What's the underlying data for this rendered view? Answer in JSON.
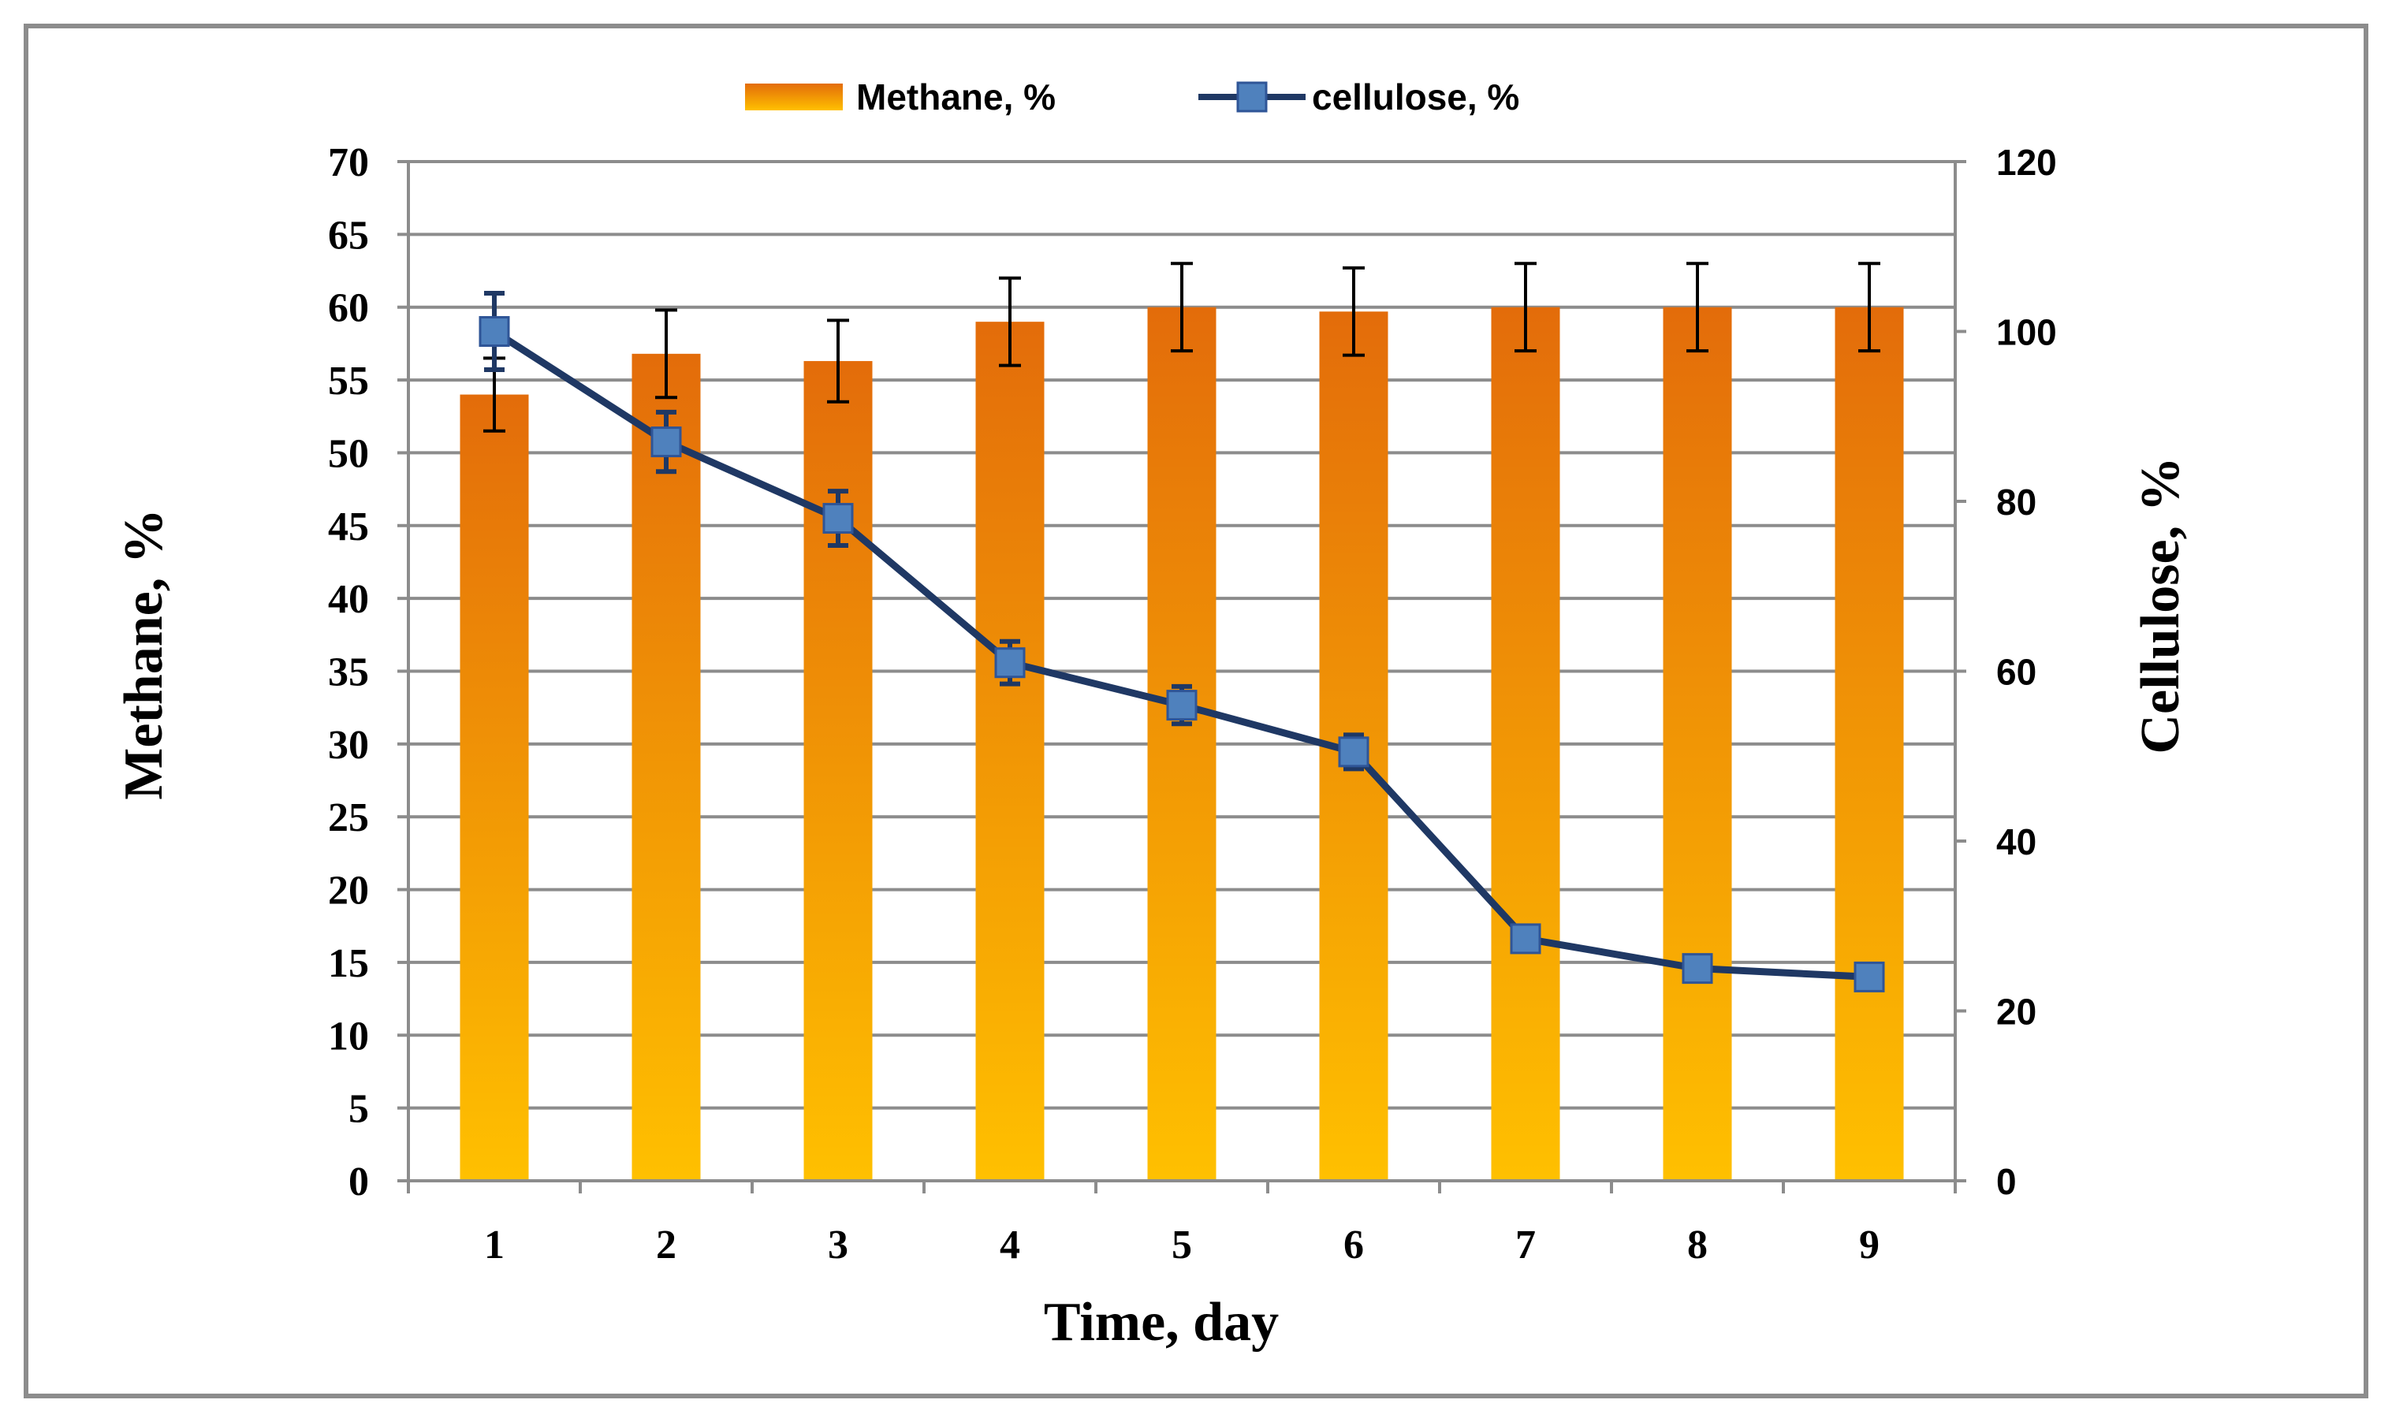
{
  "chart_data": {
    "type": "bar",
    "categories": [
      "1",
      "2",
      "3",
      "4",
      "5",
      "6",
      "7",
      "8",
      "9"
    ],
    "series": [
      {
        "name": "Methane, %",
        "type": "bar",
        "axis": "left",
        "values": [
          54,
          56.8,
          56.3,
          59,
          60,
          59.7,
          60,
          60,
          60
        ],
        "error": [
          2.5,
          3,
          2.8,
          3,
          3,
          3,
          3,
          3,
          3
        ],
        "color_top": "#e36c0a",
        "color_bottom": "#ffc000"
      },
      {
        "name": "cellulose, %",
        "type": "line",
        "axis": "right",
        "values": [
          100,
          87,
          78,
          61,
          56,
          50.5,
          28.5,
          25,
          24
        ],
        "error": [
          4.5,
          3.5,
          3.2,
          2.5,
          2.2,
          2,
          0,
          0,
          0
        ],
        "color": "#1f3864",
        "marker_color": "#4f81bd"
      }
    ],
    "xlabel": "Time, day",
    "ylabel": "Methane, %",
    "y2label": "Cellulose, %",
    "ylim": [
      0,
      70
    ],
    "y2lim": [
      0,
      120
    ],
    "yticks": [
      "0",
      "5",
      "10",
      "15",
      "20",
      "25",
      "30",
      "35",
      "40",
      "45",
      "50",
      "55",
      "60",
      "65",
      "70"
    ],
    "y2ticks": [
      "0",
      "20",
      "40",
      "60",
      "80",
      "100",
      "120"
    ],
    "grid": true,
    "legend_position": "top-center"
  }
}
